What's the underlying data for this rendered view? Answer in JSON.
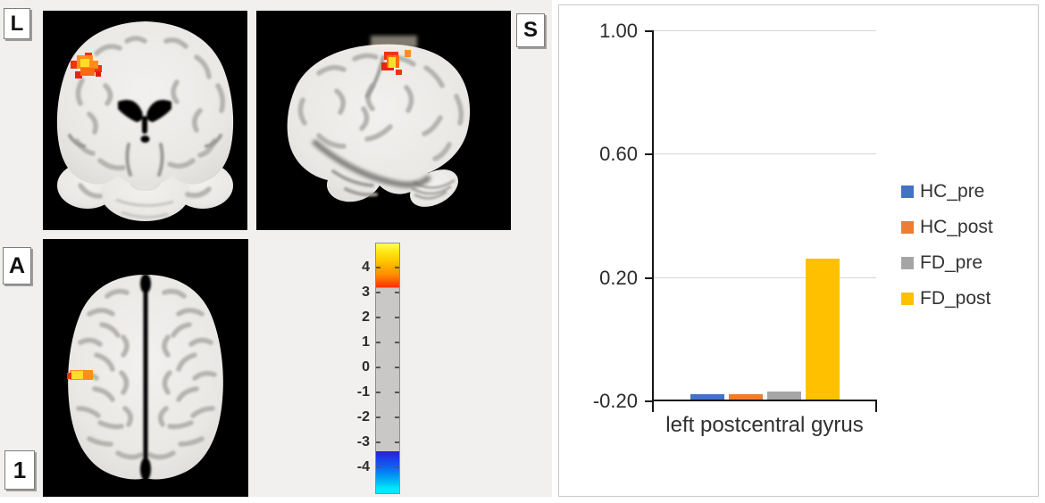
{
  "figure": {
    "orientation_labels": {
      "left": "L",
      "superior": "S",
      "anterior": "A",
      "slice_number": "1"
    },
    "colorbar": {
      "tick_labels": [
        "4",
        "3",
        "2",
        "1",
        "0",
        "-1",
        "-2",
        "-3",
        "-4"
      ],
      "tick_values": [
        4,
        3,
        2,
        1,
        0,
        -1,
        -2,
        -3,
        -4
      ],
      "value_range": [
        -5,
        5
      ],
      "threshold": 3.2,
      "positive_colors": [
        "#ffff5e",
        "#ffd000",
        "#ff8d00",
        "#f92c00"
      ],
      "neutral_color": "#c9c8c6",
      "negative_colors": [
        "#2b1ed8",
        "#0e63f0",
        "#00e8fa"
      ]
    },
    "activation_colors": {
      "core": "#ffdf26",
      "mid": "#ff8e1a",
      "edge": "#f2330e"
    }
  },
  "chart_data": {
    "type": "bar",
    "categories": [
      "left postcentral gyrus"
    ],
    "series": [
      {
        "name": "HC_pre",
        "color": "#4472C4",
        "values": [
          -0.18
        ]
      },
      {
        "name": "HC_post",
        "color": "#ED7D31",
        "values": [
          -0.18
        ]
      },
      {
        "name": "FD_pre",
        "color": "#A5A5A5",
        "values": [
          -0.17
        ]
      },
      {
        "name": "FD_post",
        "color": "#FFC000",
        "values": [
          0.26
        ]
      }
    ],
    "ylim": [
      -0.2,
      1.0
    ],
    "ytick_labels": [
      "1.00",
      "0.60",
      "0.20",
      "-0.20"
    ],
    "ytick_values": [
      1.0,
      0.6,
      0.2,
      -0.2
    ],
    "bar_baseline": -0.2,
    "grid": true,
    "legend_position": "right",
    "title": "",
    "xlabel": "",
    "ylabel": ""
  }
}
